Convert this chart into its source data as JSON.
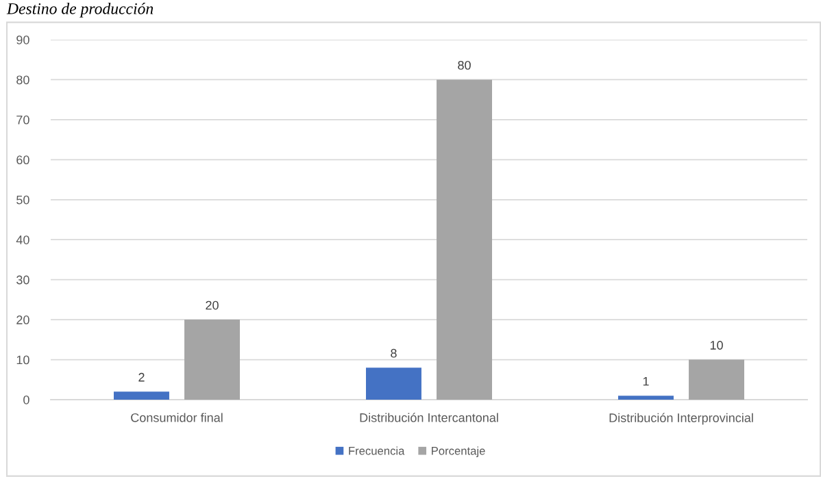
{
  "chart_data": {
    "type": "bar",
    "title": "Destino de producción",
    "categories": [
      "Consumidor final",
      "Distribución Intercantonal",
      "Distribución Interprovincial"
    ],
    "series": [
      {
        "name": "Frecuencia",
        "color": "#4472c4",
        "values": [
          2,
          8,
          1
        ]
      },
      {
        "name": "Porcentaje",
        "color": "#a5a5a5",
        "values": [
          20,
          80,
          10
        ]
      }
    ],
    "ylim": [
      0,
      90
    ],
    "yticks": [
      0,
      10,
      20,
      30,
      40,
      50,
      60,
      70,
      80,
      90
    ],
    "grid": "y",
    "legend": "bottom",
    "data_labels": true
  }
}
